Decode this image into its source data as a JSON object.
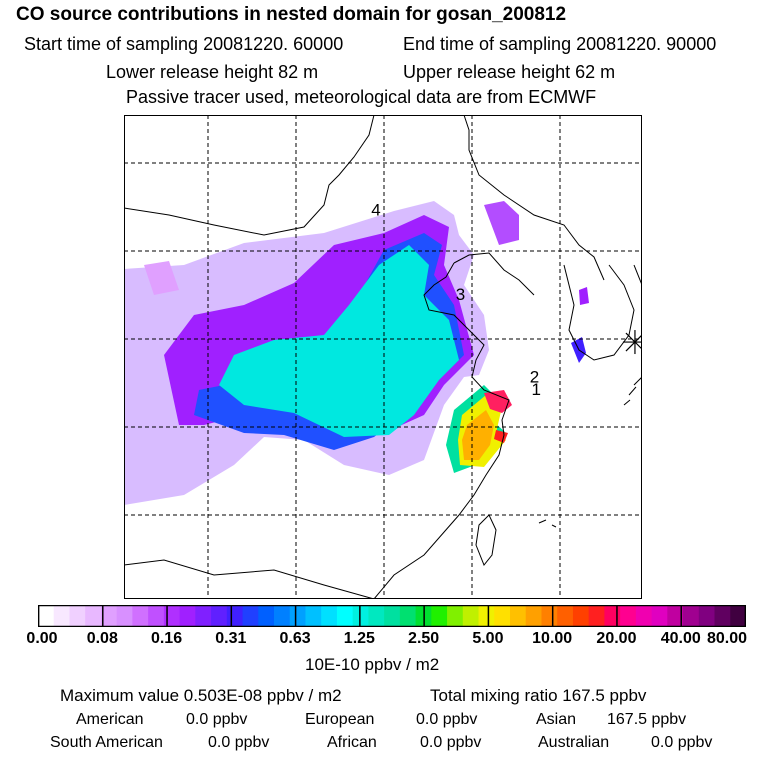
{
  "header": {
    "title": "CO  source contributions in nested domain for gosan_200812",
    "start_label": "Start time of sampling 20081220. 60000",
    "end_label": "End time of sampling 20081220. 90000",
    "lower_label": "Lower release height   82 m",
    "upper_label": "Upper release height   62 m",
    "tracer_note": "Passive tracer used, meteorological data are from ECMWF"
  },
  "map": {
    "markers": [
      {
        "label": "4",
        "lon": 111.5,
        "lat": 40.5
      },
      {
        "label": "3",
        "lon": 116.3,
        "lat": 35.7
      },
      {
        "label": "2",
        "lon": 120.5,
        "lat": 31.0
      },
      {
        "label": "1",
        "lon": 120.6,
        "lat": 30.3
      }
    ],
    "receptor_symbol": "asterisk-icon",
    "receptor": {
      "lon": 126.2,
      "lat": 33.3
    }
  },
  "colorbar": {
    "unit_label": "10E-10 ppbv / m2",
    "tick_labels": [
      "0.00",
      "0.08",
      "0.16",
      "0.31",
      "0.63",
      "1.25",
      "2.50",
      "5.00",
      "10.00",
      "20.00",
      "40.00",
      "80.00"
    ],
    "colors": [
      "#ffffff",
      "#f8e8ff",
      "#f0d0ff",
      "#e8b8ff",
      "#e0a0ff",
      "#d890ff",
      "#d070ff",
      "#c050ff",
      "#b030ff",
      "#a020ff",
      "#8020ff",
      "#6020ff",
      "#4020ff",
      "#2040ff",
      "#0060ff",
      "#0080ff",
      "#00a0ff",
      "#00c0ff",
      "#00e0ff",
      "#00ffff",
      "#00f0e0",
      "#00e8c0",
      "#00e0a0",
      "#00e070",
      "#00e030",
      "#20f000",
      "#80f000",
      "#c0f000",
      "#f0f000",
      "#ffe000",
      "#ffc000",
      "#ffa000",
      "#ff8000",
      "#ff6000",
      "#ff4000",
      "#ff2020",
      "#ff0060",
      "#ff0090",
      "#f000b0",
      "#e000c0",
      "#c000a0",
      "#a00090",
      "#800080",
      "#600060",
      "#400040"
    ]
  },
  "stats": {
    "max_label": "Maximum value  0.503E-08 ppbv / m2",
    "total_label": "Total mixing ratio      167.5 ppbv",
    "regions": [
      {
        "name": "American",
        "value": "0.0 ppbv"
      },
      {
        "name": "European",
        "value": "0.0 ppbv"
      },
      {
        "name": "Asian",
        "value": "167.5 ppbv"
      },
      {
        "name": "South American",
        "value": "0.0 ppbv"
      },
      {
        "name": "African",
        "value": "0.0 ppbv"
      },
      {
        "name": "Australian",
        "value": "0.0 ppbv"
      }
    ]
  }
}
